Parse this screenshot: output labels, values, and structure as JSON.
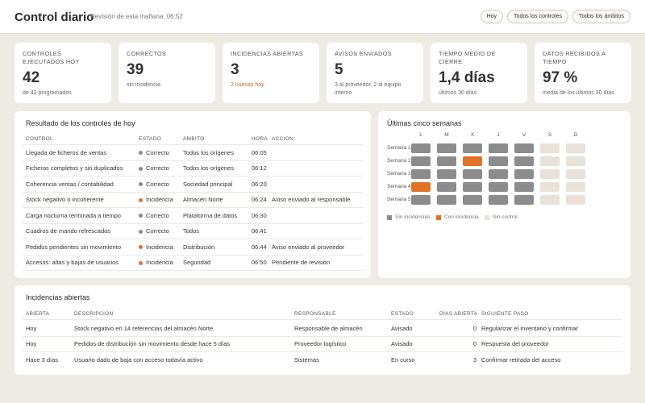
{
  "header": {
    "title": "Control diario",
    "subtitle": "Revisión de esta mañana, 06:52",
    "buttons": [
      "Hoy",
      "Todos los controles",
      "Todos los ámbitos"
    ]
  },
  "kpis": [
    {
      "label": "CONTROLES EJECUTADOS HOY",
      "value": "42",
      "note": "de 42 programados",
      "note_color": "#666666"
    },
    {
      "label": "CORRECTOS",
      "value": "39",
      "note": "sin incidencia",
      "note_color": "#666666"
    },
    {
      "label": "INCIDENCIAS ABIERTAS",
      "value": "3",
      "note": "2 nuevas hoy",
      "note_color": "#d4661f"
    },
    {
      "label": "AVISOS ENVIADOS",
      "value": "5",
      "note": "3 al proveedor, 2 al equipo interno",
      "note_color": "#666666"
    },
    {
      "label": "TIEMPO MEDIO DE CIERRE",
      "value": "1,4 días",
      "note": "últimos 30 días",
      "note_color": "#666666"
    },
    {
      "label": "DATOS RECIBIDOS A TIEMPO",
      "value": "97 %",
      "note": "media de los últimos 30 días",
      "note_color": "#666666"
    }
  ],
  "controls": {
    "title": "Resultado de los controles de hoy",
    "columns": [
      "CONTROL",
      "ESTADO",
      "ÁMBITO",
      "HORA",
      "ACCIÓN"
    ],
    "rows": [
      {
        "cells": [
          "Llegada de ficheros de ventas",
          "Correcto",
          "Todos los orígenes",
          "06:05",
          ""
        ],
        "color": "#8a8a8a"
      },
      {
        "cells": [
          "Ficheros completos y sin duplicados",
          "Correcto",
          "Todos los orígenes",
          "06:12",
          ""
        ],
        "color": "#8a8a8a"
      },
      {
        "cells": [
          "Coherencia ventas / contabilidad",
          "Correcto",
          "Sociedad principal",
          "06:20",
          ""
        ],
        "color": "#8a8a8a"
      },
      {
        "cells": [
          "Stock negativo o incoherente",
          "Incidencia",
          "Almacén Norte",
          "06:24",
          "Aviso enviado al responsable"
        ],
        "color": "#e07328"
      },
      {
        "cells": [
          "Carga nocturna terminada a tiempo",
          "Correcto",
          "Plataforma de datos",
          "06:30",
          ""
        ],
        "color": "#8a8a8a"
      },
      {
        "cells": [
          "Cuadros de mando refrescados",
          "Correcto",
          "Todos",
          "06:41",
          ""
        ],
        "color": "#8a8a8a"
      },
      {
        "cells": [
          "Pedidos pendientes sin movimiento",
          "Incidencia",
          "Distribución",
          "06:44",
          "Aviso enviado al proveedor"
        ],
        "color": "#e07328"
      },
      {
        "cells": [
          "Accesos: altas y bajas de usuarios",
          "Incidencia",
          "Seguridad",
          "06:50",
          "Pendiente de revisión"
        ],
        "color": "#e07328"
      }
    ]
  },
  "weeks": {
    "title": "Últimas cinco semanas",
    "days": [
      "L",
      "M",
      "X",
      "J",
      "V",
      "S",
      "D"
    ],
    "rows": [
      "Semana 1",
      "Semana 2",
      "Semana 3",
      "Semana 4",
      "Semana 5"
    ],
    "cells": [
      [
        "#8c8c8c",
        "#8c8c8c",
        "#8c8c8c",
        "#8c8c8c",
        "#8c8c8c",
        "#e8e2da",
        "#e8e2da"
      ],
      [
        "#8c8c8c",
        "#8c8c8c",
        "#e07328",
        "#8c8c8c",
        "#8c8c8c",
        "#e8e2da",
        "#e8e2da"
      ],
      [
        "#8c8c8c",
        "#8c8c8c",
        "#8c8c8c",
        "#8c8c8c",
        "#8c8c8c",
        "#e8e2da",
        "#e8e2da"
      ],
      [
        "#e07328",
        "#8c8c8c",
        "#8c8c8c",
        "#8c8c8c",
        "#8c8c8c",
        "#e8e2da",
        "#e8e2da"
      ],
      [
        "#8c8c8c",
        "#8c8c8c",
        "#8c8c8c",
        "#8c8c8c",
        "#8c8c8c",
        "#e8e2da",
        "#e8e2da"
      ]
    ],
    "legend": [
      {
        "label": "Sin incidencias",
        "color": "#8c8c8c"
      },
      {
        "label": "Con incidencia",
        "color": "#e07328"
      },
      {
        "label": "Sin control",
        "color": "#e8e2da"
      }
    ]
  },
  "incidents": {
    "title": "Incidencias abiertas",
    "columns": [
      "ABIERTA",
      "DESCRIPCIÓN",
      "RESPONSABLE",
      "ESTADO",
      "DÍAS ABIERTA",
      "SIGUIENTE PASO"
    ],
    "rows": [
      [
        "Hoy",
        "Stock negativo en 14 referencias del almacén Norte",
        "Responsable de almacén",
        "Avisado",
        0,
        "Regularizar el inventario y confirmar"
      ],
      [
        "Hoy",
        "Pedidos de distribución sin movimiento desde hace 5 días",
        "Proveedor logístico",
        "Avisado",
        0,
        "Respuesta del proveedor"
      ],
      [
        "Hace 3 días",
        "Usuario dado de baja con acceso todavía activo",
        "Sistemas",
        "En curso",
        3,
        "Confirmar retirada del acceso"
      ]
    ]
  }
}
